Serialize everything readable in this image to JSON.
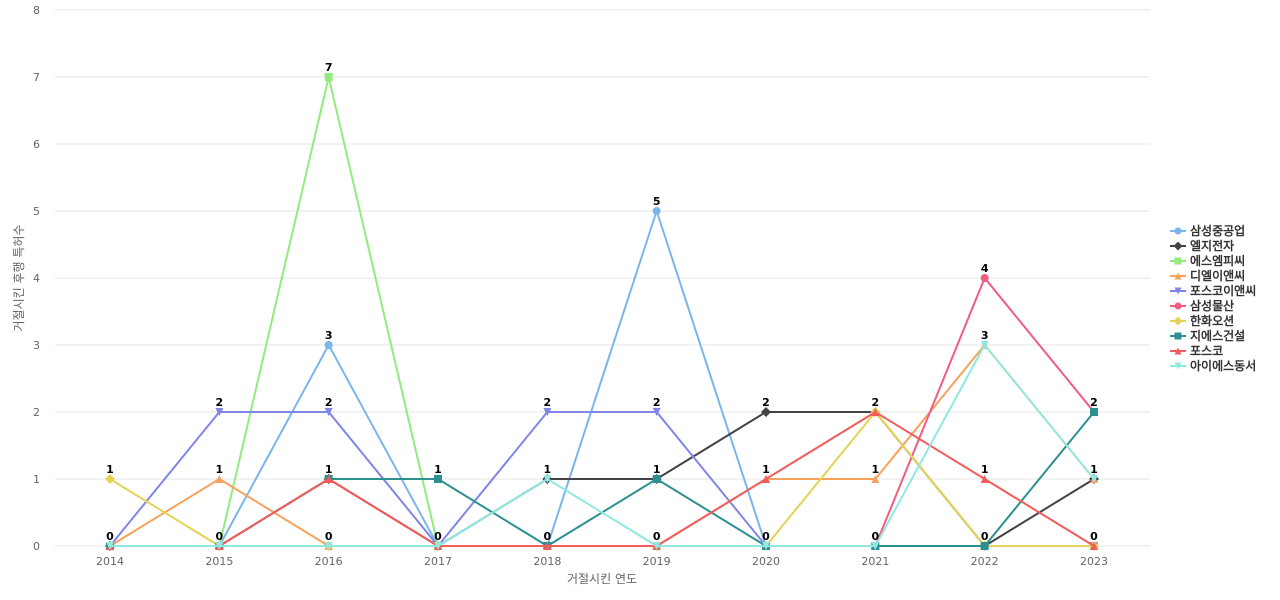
{
  "chart_data": {
    "type": "line",
    "xlabel": "거절시킨 연도",
    "ylabel": "거절시킨 후행 특허수",
    "x": [
      "2014",
      "2015",
      "2016",
      "2017",
      "2018",
      "2019",
      "2020",
      "2021",
      "2022",
      "2023"
    ],
    "ylim": [
      0,
      8
    ],
    "yticks": [
      0,
      1,
      2,
      3,
      4,
      5,
      6,
      7,
      8
    ],
    "grid": true,
    "legend_position": "right",
    "series": [
      {
        "name": "삼성중공업",
        "color": "#7cb5ec",
        "marker": "circle",
        "values": [
          0,
          0,
          3,
          0,
          0,
          5,
          0,
          0,
          0,
          0
        ]
      },
      {
        "name": "엘지전자",
        "color": "#434348",
        "marker": "diamond",
        "values": [
          0,
          0,
          1,
          0,
          1,
          1,
          2,
          2,
          0,
          1
        ]
      },
      {
        "name": "에스엠피씨",
        "color": "#90ed7d",
        "marker": "square",
        "values": [
          0,
          0,
          7,
          0,
          0,
          0,
          0,
          0,
          0,
          0
        ]
      },
      {
        "name": "디엘이앤씨",
        "color": "#f7a35c",
        "marker": "triangle",
        "values": [
          0,
          1,
          0,
          0,
          0,
          0,
          1,
          1,
          3,
          1
        ]
      },
      {
        "name": "포스코이앤씨",
        "color": "#8085e9",
        "marker": "triangle-down",
        "values": [
          0,
          2,
          2,
          0,
          2,
          2,
          0,
          0,
          0,
          0
        ]
      },
      {
        "name": "삼성물산",
        "color": "#f15c80",
        "marker": "circle",
        "values": [
          0,
          0,
          0,
          0,
          0,
          0,
          0,
          0,
          4,
          2
        ]
      },
      {
        "name": "한화오션",
        "color": "#e4d354",
        "marker": "diamond",
        "values": [
          1,
          0,
          0,
          0,
          0,
          0,
          0,
          2,
          0,
          0
        ]
      },
      {
        "name": "지에스건설",
        "color": "#2b908f",
        "marker": "square",
        "values": [
          0,
          0,
          1,
          1,
          0,
          1,
          0,
          0,
          0,
          2
        ]
      },
      {
        "name": "포스코",
        "color": "#f45b5b",
        "marker": "triangle",
        "values": [
          0,
          0,
          1,
          0,
          0,
          0,
          1,
          2,
          1,
          0
        ]
      },
      {
        "name": "아이에스동서",
        "color": "#91e8e1",
        "marker": "triangle-down",
        "values": [
          0,
          0,
          0,
          0,
          1,
          0,
          0,
          0,
          3,
          1
        ]
      }
    ],
    "data_labels": [
      {
        "x": "2014",
        "y": 1,
        "text": "1"
      },
      {
        "x": "2014",
        "y": 0,
        "text": "0"
      },
      {
        "x": "2015",
        "y": 2,
        "text": "2"
      },
      {
        "x": "2015",
        "y": 1,
        "text": "1"
      },
      {
        "x": "2015",
        "y": 0,
        "text": "0"
      },
      {
        "x": "2016",
        "y": 7,
        "text": "7"
      },
      {
        "x": "2016",
        "y": 3,
        "text": "3"
      },
      {
        "x": "2016",
        "y": 2,
        "text": "2"
      },
      {
        "x": "2016",
        "y": 1,
        "text": "1"
      },
      {
        "x": "2016",
        "y": 0,
        "text": "0"
      },
      {
        "x": "2017",
        "y": 1,
        "text": "1"
      },
      {
        "x": "2017",
        "y": 0,
        "text": "0"
      },
      {
        "x": "2018",
        "y": 2,
        "text": "2"
      },
      {
        "x": "2018",
        "y": 1,
        "text": "1"
      },
      {
        "x": "2018",
        "y": 0,
        "text": "0"
      },
      {
        "x": "2019",
        "y": 5,
        "text": "5"
      },
      {
        "x": "2019",
        "y": 2,
        "text": "2"
      },
      {
        "x": "2019",
        "y": 1,
        "text": "1"
      },
      {
        "x": "2019",
        "y": 0,
        "text": "0"
      },
      {
        "x": "2020",
        "y": 2,
        "text": "2"
      },
      {
        "x": "2020",
        "y": 1,
        "text": "1"
      },
      {
        "x": "2020",
        "y": 0,
        "text": "0"
      },
      {
        "x": "2021",
        "y": 2,
        "text": "2"
      },
      {
        "x": "2021",
        "y": 1,
        "text": "1"
      },
      {
        "x": "2021",
        "y": 0,
        "text": "0"
      },
      {
        "x": "2022",
        "y": 4,
        "text": "4"
      },
      {
        "x": "2022",
        "y": 3,
        "text": "3"
      },
      {
        "x": "2022",
        "y": 1,
        "text": "1"
      },
      {
        "x": "2022",
        "y": 0,
        "text": "0"
      },
      {
        "x": "2023",
        "y": 2,
        "text": "2"
      },
      {
        "x": "2023",
        "y": 1,
        "text": "1"
      },
      {
        "x": "2023",
        "y": 0,
        "text": "0"
      }
    ]
  }
}
